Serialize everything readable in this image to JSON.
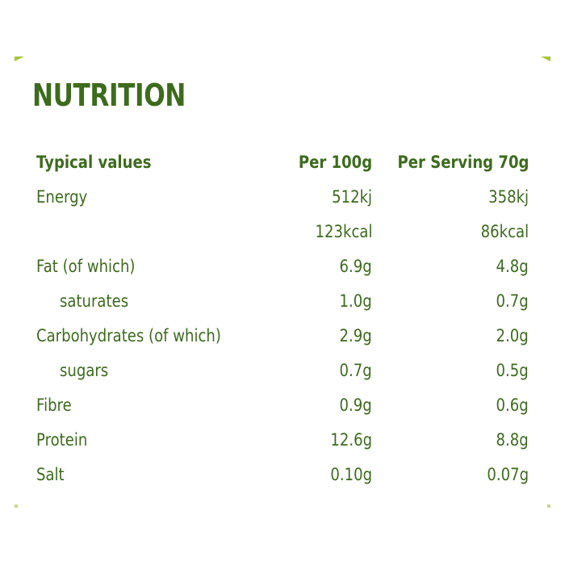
{
  "title": "NUTRITION",
  "header": {
    "label": "Typical values",
    "per_100g": "Per 100g",
    "per_serving": "Per Serving 70g"
  },
  "rows": [
    {
      "label": "Energy",
      "per_100g": "512kj",
      "per_serving": "358kj",
      "indent": false
    },
    {
      "label": "",
      "per_100g": "123kcal",
      "per_serving": "86kcal",
      "indent": false
    },
    {
      "label": "Fat (of which)",
      "per_100g": "6.9g",
      "per_serving": "4.8g",
      "indent": false
    },
    {
      "label": "saturates",
      "per_100g": "1.0g",
      "per_serving": "0.7g",
      "indent": true
    },
    {
      "label": "Carbohydrates (of which)",
      "per_100g": "2.9g",
      "per_serving": "2.0g",
      "indent": false
    },
    {
      "label": "sugars",
      "per_100g": "0.7g",
      "per_serving": "0.5g",
      "indent": true
    },
    {
      "label": "Fibre",
      "per_100g": "0.9g",
      "per_serving": "0.6g",
      "indent": false
    },
    {
      "label": "Protein",
      "per_100g": "12.6g",
      "per_serving": "8.8g",
      "indent": false
    },
    {
      "label": "Salt",
      "per_100g": "0.10g",
      "per_serving": "0.07g",
      "indent": false
    }
  ],
  "colors": {
    "text": "#3d6b1e",
    "accent": "#a6c43a"
  }
}
